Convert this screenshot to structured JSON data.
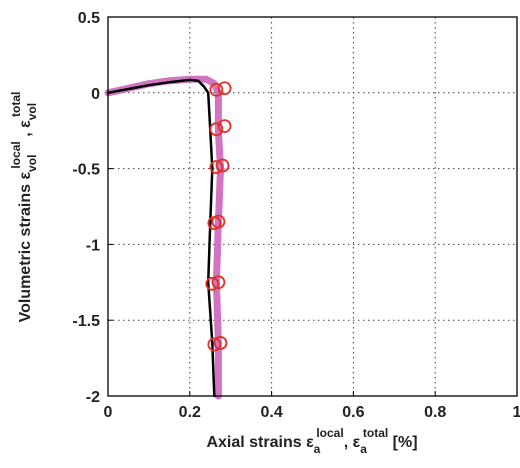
{
  "chart_data": {
    "type": "line",
    "xlabel": {
      "prefix": "Axial strains ",
      "sym": "ε",
      "sub1": "a",
      "sup1": "local",
      "sep": ", ",
      "sub2": "a",
      "sup2": "total",
      "suffix": " [%]"
    },
    "ylabel": {
      "prefix": "Volumetric strains ",
      "sym": "ε",
      "sub1": "vol",
      "sup1": "local",
      "sep": " , ",
      "sub2": "vol",
      "sup2": "total"
    },
    "xlim": [
      0,
      1
    ],
    "ylim": [
      -2,
      0.5
    ],
    "xticks": [
      0,
      0.2,
      0.4,
      0.6,
      0.8,
      1
    ],
    "xtick_labels": [
      "0",
      "0.2",
      "0.4",
      "0.6",
      "0.8",
      "1"
    ],
    "yticks": [
      -2,
      -1.5,
      -1,
      -0.5,
      0,
      0.5
    ],
    "ytick_labels": [
      "-2",
      "-1.5",
      "-1",
      "-0.5",
      "0",
      "0.5"
    ],
    "grid": true,
    "series": [
      {
        "color": "#cc66bb",
        "points": [
          [
            0,
            0
          ],
          [
            0.05,
            0.03
          ],
          [
            0.1,
            0.06
          ],
          [
            0.15,
            0.08
          ],
          [
            0.2,
            0.09
          ],
          [
            0.24,
            0.09
          ],
          [
            0.26,
            0.06
          ],
          [
            0.27,
            0.0
          ],
          [
            0.27,
            -0.25
          ],
          [
            0.275,
            -0.5
          ],
          [
            0.27,
            -0.85
          ],
          [
            0.265,
            -1.25
          ],
          [
            0.27,
            -1.65
          ],
          [
            0.27,
            -2.0
          ]
        ]
      },
      {
        "color": "#000000",
        "points": [
          [
            0,
            0
          ],
          [
            0.05,
            0.025
          ],
          [
            0.1,
            0.05
          ],
          [
            0.15,
            0.07
          ],
          [
            0.2,
            0.085
          ],
          [
            0.22,
            0.08
          ],
          [
            0.235,
            0.04
          ],
          [
            0.245,
            0.0
          ],
          [
            0.25,
            -0.25
          ],
          [
            0.255,
            -0.5
          ],
          [
            0.25,
            -0.85
          ],
          [
            0.245,
            -1.25
          ],
          [
            0.255,
            -1.65
          ],
          [
            0.26,
            -2.0
          ]
        ]
      }
    ],
    "markers": {
      "color": "#e0302a",
      "points": [
        [
          0.265,
          0.02
        ],
        [
          0.285,
          0.03
        ],
        [
          0.265,
          -0.24
        ],
        [
          0.285,
          -0.22
        ],
        [
          0.265,
          -0.49
        ],
        [
          0.28,
          -0.48
        ],
        [
          0.26,
          -0.86
        ],
        [
          0.27,
          -0.85
        ],
        [
          0.255,
          -1.26
        ],
        [
          0.27,
          -1.25
        ],
        [
          0.26,
          -1.66
        ],
        [
          0.275,
          -1.65
        ]
      ]
    }
  }
}
